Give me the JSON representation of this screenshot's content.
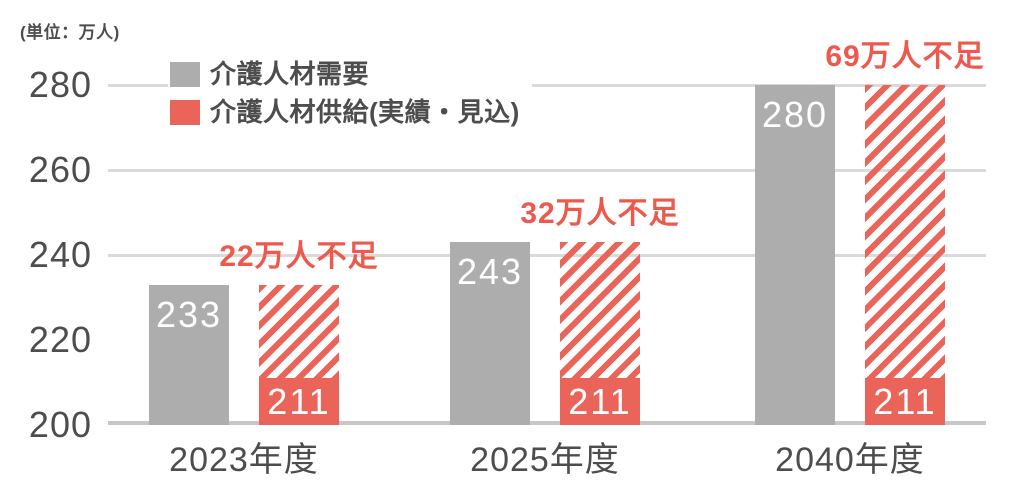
{
  "chart_data": {
    "type": "bar",
    "title": "",
    "unit_label": "(単位：万人)",
    "categories": [
      "2023年度",
      "2025年度",
      "2040年度"
    ],
    "series": [
      {
        "name": "介護人材需要",
        "values": [
          233,
          243,
          280
        ],
        "color": "#adadad",
        "style": "solid"
      },
      {
        "name": "介護人材供給(実績・見込)",
        "values": [
          211,
          211,
          211
        ],
        "color": "#ea6459",
        "style": "solid base with diagonal-hatched shortage area extending up to demand value"
      }
    ],
    "annotations": [
      {
        "label": "22万人不足",
        "shortage": 22,
        "category": "2023年度"
      },
      {
        "label": "32万人不足",
        "shortage": 32,
        "category": "2025年度"
      },
      {
        "label": "69万人不足",
        "shortage": 69,
        "category": "2040年度"
      }
    ],
    "y_ticks": [
      280,
      260,
      240,
      220,
      200
    ],
    "ylim": [
      200,
      284
    ],
    "gridlines_at": [
      280,
      260,
      240
    ],
    "grid": "horizontal gridlines at 240/260/280 plus thick baseline at 200",
    "legend_position": "top-left",
    "xlabel": "",
    "ylabel": "万人",
    "colors": {
      "demand_bar": "#adadad",
      "supply_bar": "#ea6459",
      "hatch_stripe": "#ea6459",
      "annotation_text": "#ed594c",
      "axis_text": "#4d4d4d",
      "bar_value_text": "#ffffff",
      "gridline": "#dadada",
      "baseline": "#c7c7c7",
      "background": "#ffffff"
    }
  }
}
